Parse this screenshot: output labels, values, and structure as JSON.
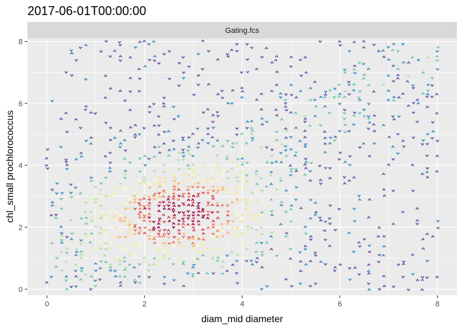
{
  "chart_data": {
    "type": "scatter",
    "title": "2017-06-01T00:00:00",
    "facet_label": "Gating.fcs",
    "xlabel": "diam_mid diameter",
    "ylabel": "chl_small prochlorococcus",
    "xlim": [
      -0.4,
      8.4
    ],
    "ylim": [
      -0.2,
      8.1
    ],
    "x_ticks": [
      0,
      2,
      4,
      6,
      8
    ],
    "y_ticks": [
      0,
      2,
      4,
      6,
      8
    ],
    "x_tick_labels": [
      "0",
      "2",
      "4",
      "6",
      "8"
    ],
    "y_tick_labels": [
      "0",
      "2",
      "4",
      "6",
      "8"
    ],
    "grid": true,
    "legend": "none",
    "colormap": "Spectral",
    "colormap_colors": [
      "#5E4FA2",
      "#3288BD",
      "#66C2A5",
      "#ABDDA4",
      "#E6F598",
      "#FFFFBF",
      "#FEE08B",
      "#FDAE61",
      "#F46D43",
      "#D53E4F",
      "#9E0142"
    ],
    "density_peak": {
      "x": 2.8,
      "y": 2.4
    },
    "note_points": "binned scatter; points sampled in data units",
    "points": []
  }
}
